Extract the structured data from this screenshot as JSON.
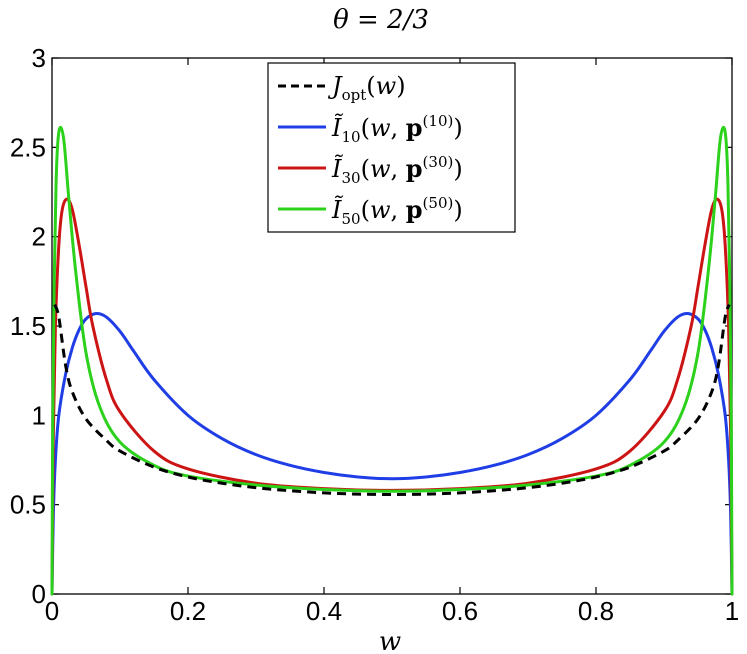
{
  "chart_data": {
    "type": "line",
    "title": "θ = 2/3",
    "xlabel": "w",
    "ylabel": "",
    "xlim": [
      0,
      1
    ],
    "ylim": [
      0,
      3
    ],
    "xticks": [
      "0",
      "0.2",
      "0.4",
      "0.6",
      "0.8",
      "1"
    ],
    "yticks": [
      "0",
      "0.5",
      "1",
      "1.5",
      "2",
      "2.5",
      "3"
    ],
    "grid": false,
    "legend_position": "top-center",
    "series": [
      {
        "name": "J_opt(w)",
        "color": "#000000",
        "dash": "dashed",
        "points": [
          [
            0.004,
            1.62
          ],
          [
            0.01,
            1.55
          ],
          [
            0.02,
            1.28
          ],
          [
            0.03,
            1.13
          ],
          [
            0.05,
            0.98
          ],
          [
            0.08,
            0.86
          ],
          [
            0.1,
            0.8
          ],
          [
            0.15,
            0.71
          ],
          [
            0.2,
            0.655
          ],
          [
            0.25,
            0.62
          ],
          [
            0.3,
            0.595
          ],
          [
            0.35,
            0.578
          ],
          [
            0.4,
            0.566
          ],
          [
            0.45,
            0.559
          ],
          [
            0.5,
            0.557
          ],
          [
            0.55,
            0.559
          ],
          [
            0.6,
            0.566
          ],
          [
            0.65,
            0.578
          ],
          [
            0.7,
            0.595
          ],
          [
            0.75,
            0.62
          ],
          [
            0.8,
            0.655
          ],
          [
            0.85,
            0.71
          ],
          [
            0.9,
            0.8
          ],
          [
            0.92,
            0.86
          ],
          [
            0.95,
            0.98
          ],
          [
            0.97,
            1.13
          ],
          [
            0.98,
            1.28
          ],
          [
            0.99,
            1.55
          ],
          [
            0.996,
            1.62
          ]
        ]
      },
      {
        "name": "Ĩ10(w, p(10))",
        "color": "#1f3ee6",
        "dash": "solid",
        "points": [
          [
            0,
            0
          ],
          [
            0.002,
            0.45
          ],
          [
            0.005,
            0.75
          ],
          [
            0.01,
            1.0
          ],
          [
            0.02,
            1.23
          ],
          [
            0.03,
            1.38
          ],
          [
            0.04,
            1.48
          ],
          [
            0.05,
            1.54
          ],
          [
            0.065,
            1.57
          ],
          [
            0.08,
            1.55
          ],
          [
            0.1,
            1.47
          ],
          [
            0.12,
            1.36
          ],
          [
            0.15,
            1.2
          ],
          [
            0.2,
            1.0
          ],
          [
            0.25,
            0.87
          ],
          [
            0.3,
            0.78
          ],
          [
            0.35,
            0.72
          ],
          [
            0.4,
            0.68
          ],
          [
            0.45,
            0.655
          ],
          [
            0.5,
            0.645
          ],
          [
            0.55,
            0.655
          ],
          [
            0.6,
            0.68
          ],
          [
            0.65,
            0.72
          ],
          [
            0.7,
            0.78
          ],
          [
            0.75,
            0.87
          ],
          [
            0.8,
            1.0
          ],
          [
            0.85,
            1.2
          ],
          [
            0.88,
            1.36
          ],
          [
            0.9,
            1.47
          ],
          [
            0.92,
            1.55
          ],
          [
            0.935,
            1.57
          ],
          [
            0.95,
            1.54
          ],
          [
            0.96,
            1.48
          ],
          [
            0.97,
            1.38
          ],
          [
            0.98,
            1.23
          ],
          [
            0.99,
            1.0
          ],
          [
            0.995,
            0.75
          ],
          [
            0.998,
            0.45
          ],
          [
            1,
            0
          ]
        ]
      },
      {
        "name": "Ĩ30(w, p(30))",
        "color": "#cc1414",
        "dash": "solid",
        "points": [
          [
            0,
            0
          ],
          [
            0.002,
            0.9
          ],
          [
            0.005,
            1.5
          ],
          [
            0.01,
            1.95
          ],
          [
            0.015,
            2.15
          ],
          [
            0.022,
            2.21
          ],
          [
            0.03,
            2.15
          ],
          [
            0.04,
            1.95
          ],
          [
            0.05,
            1.72
          ],
          [
            0.06,
            1.5
          ],
          [
            0.08,
            1.2
          ],
          [
            0.1,
            1.02
          ],
          [
            0.15,
            0.8
          ],
          [
            0.2,
            0.7
          ],
          [
            0.3,
            0.62
          ],
          [
            0.4,
            0.59
          ],
          [
            0.5,
            0.58
          ],
          [
            0.6,
            0.59
          ],
          [
            0.7,
            0.62
          ],
          [
            0.8,
            0.7
          ],
          [
            0.85,
            0.8
          ],
          [
            0.9,
            1.02
          ],
          [
            0.92,
            1.2
          ],
          [
            0.94,
            1.5
          ],
          [
            0.95,
            1.72
          ],
          [
            0.96,
            1.95
          ],
          [
            0.97,
            2.15
          ],
          [
            0.978,
            2.21
          ],
          [
            0.985,
            2.15
          ],
          [
            0.99,
            1.95
          ],
          [
            0.995,
            1.5
          ],
          [
            0.998,
            0.9
          ],
          [
            1,
            0
          ]
        ]
      },
      {
        "name": "Ĩ50(w, p(50))",
        "color": "#2bd11a",
        "dash": "solid",
        "points": [
          [
            0,
            0
          ],
          [
            0.001,
            0.9
          ],
          [
            0.003,
            1.7
          ],
          [
            0.006,
            2.3
          ],
          [
            0.009,
            2.55
          ],
          [
            0.013,
            2.61
          ],
          [
            0.018,
            2.52
          ],
          [
            0.025,
            2.2
          ],
          [
            0.035,
            1.8
          ],
          [
            0.05,
            1.35
          ],
          [
            0.07,
            1.05
          ],
          [
            0.1,
            0.85
          ],
          [
            0.15,
            0.72
          ],
          [
            0.2,
            0.66
          ],
          [
            0.3,
            0.61
          ],
          [
            0.4,
            0.585
          ],
          [
            0.5,
            0.575
          ],
          [
            0.6,
            0.585
          ],
          [
            0.7,
            0.61
          ],
          [
            0.8,
            0.66
          ],
          [
            0.85,
            0.72
          ],
          [
            0.9,
            0.85
          ],
          [
            0.93,
            1.05
          ],
          [
            0.95,
            1.35
          ],
          [
            0.965,
            1.8
          ],
          [
            0.975,
            2.2
          ],
          [
            0.982,
            2.52
          ],
          [
            0.987,
            2.61
          ],
          [
            0.991,
            2.55
          ],
          [
            0.994,
            2.3
          ],
          [
            0.997,
            1.7
          ],
          [
            0.999,
            0.9
          ],
          [
            1,
            0
          ]
        ]
      }
    ]
  }
}
